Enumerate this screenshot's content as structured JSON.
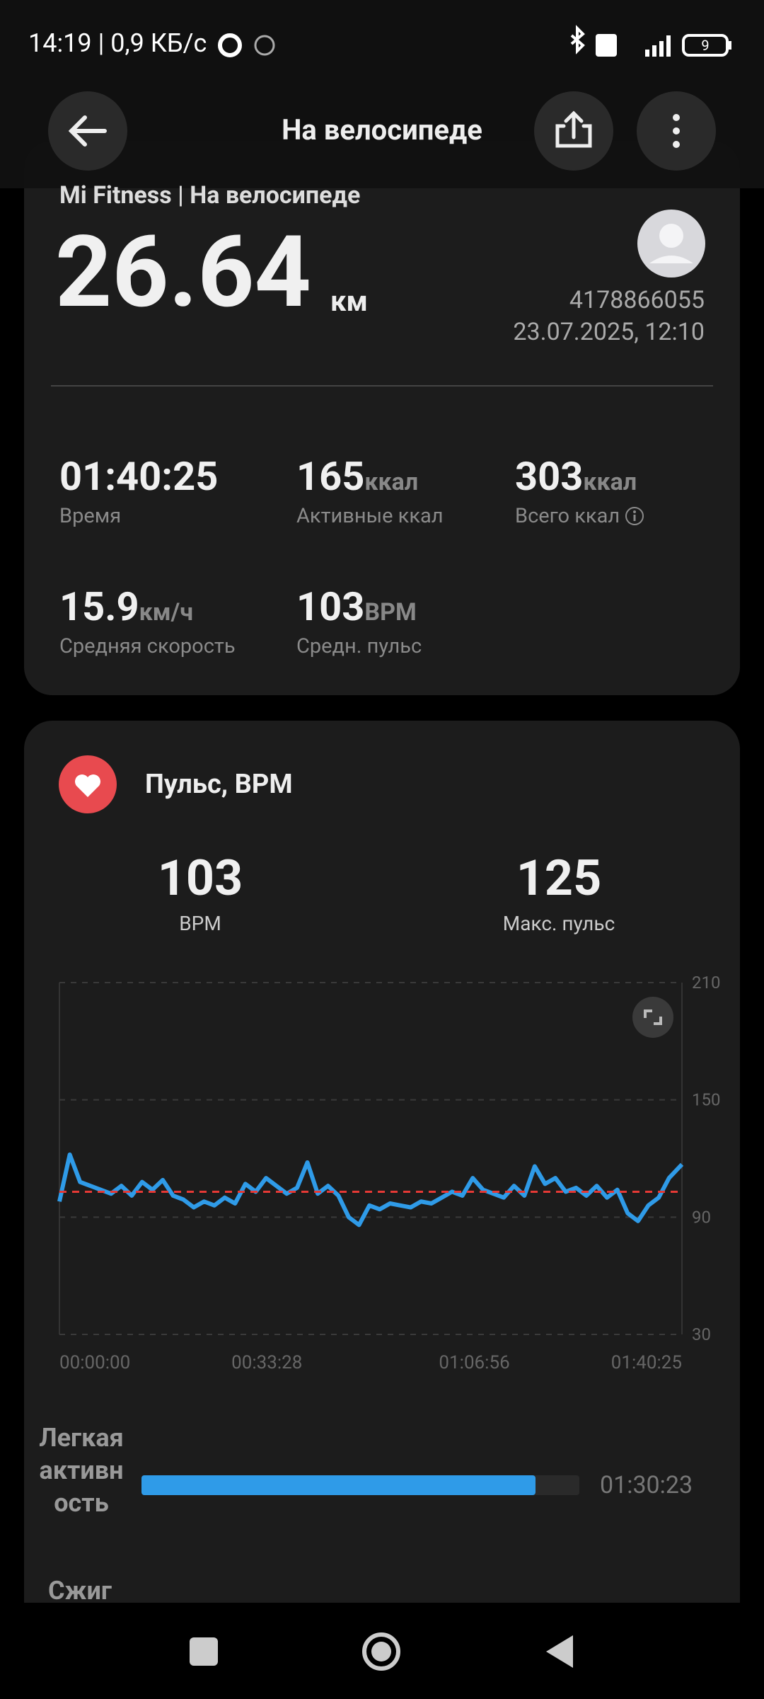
{
  "status_bar": {
    "time": "14:19 | 0,9 КБ/с",
    "battery": "9"
  },
  "header": {
    "title": "На велосипеде"
  },
  "summary": {
    "source": "Mi Fitness | На велосипеде",
    "distance": "26.64",
    "distance_unit": "км",
    "user_id": "4178866055",
    "datetime": "23.07.2025, 12:10",
    "stats": [
      {
        "value": "01:40:25",
        "label": "Время"
      },
      {
        "value": "165",
        "unit": "ккал",
        "label": "Активные ккал"
      },
      {
        "value": "303",
        "unit": "ккал",
        "label": "Всего ккал",
        "info_icon": true
      },
      {
        "value": "15.9",
        "unit": "км/ч",
        "label": "Средняя скорость"
      },
      {
        "value": "103",
        "unit": "BPM",
        "label": "Средн. пульс"
      }
    ]
  },
  "pulse": {
    "title": "Пульс, BPM",
    "avg": {
      "value": "103",
      "label": "BPM"
    },
    "max": {
      "value": "125",
      "label": "Макс. пульс"
    }
  },
  "chart_data": {
    "type": "line",
    "x": [
      0,
      100,
      200,
      300,
      400,
      500,
      600,
      700,
      800,
      900,
      1000,
      1100,
      1200,
      1300,
      1400,
      1500,
      1600,
      1700,
      1800,
      1900,
      2000,
      2100,
      2200,
      2300,
      2400,
      2500,
      2600,
      2700,
      2800,
      2900,
      3000,
      3100,
      3200,
      3300,
      3400,
      3500,
      3600,
      3700,
      3800,
      3900,
      4000,
      4100,
      4200,
      4300,
      4400,
      4500,
      4600,
      4700,
      4800,
      4900,
      5000,
      5100,
      5200,
      5300,
      5400,
      5500,
      5600,
      5700,
      5800,
      5900,
      6025
    ],
    "series": [
      {
        "color": "#2f9be8",
        "values": [
          98,
          122,
          108,
          106,
          104,
          102,
          106,
          101,
          108,
          104,
          109,
          101,
          99,
          95,
          98,
          96,
          100,
          97,
          107,
          103,
          110,
          106,
          102,
          105,
          118,
          102,
          106,
          101,
          90,
          86,
          96,
          94,
          97,
          96,
          95,
          98,
          97,
          100,
          103,
          101,
          110,
          104,
          102,
          100,
          106,
          101,
          116,
          107,
          110,
          103,
          105,
          101,
          106,
          100,
          104,
          92,
          88,
          96,
          100,
          110,
          117
        ]
      }
    ],
    "reference_line": 103,
    "reference_color": "#e53935",
    "xlim": [
      0,
      6025
    ],
    "xticks": [
      {
        "value": 0,
        "label": "00:00:00"
      },
      {
        "value": 2008,
        "label": "00:33:28"
      },
      {
        "value": 4016,
        "label": "01:06:56"
      },
      {
        "value": 6025,
        "label": "01:40:25"
      }
    ],
    "ylim": [
      30,
      210
    ],
    "yticks": [
      30,
      90,
      150,
      210
    ],
    "grid": true
  },
  "zones": [
    {
      "label": "Легкая активность",
      "time": "01:30:23",
      "color": "#2f9be8"
    },
    {
      "label": "Сжиг"
    }
  ]
}
